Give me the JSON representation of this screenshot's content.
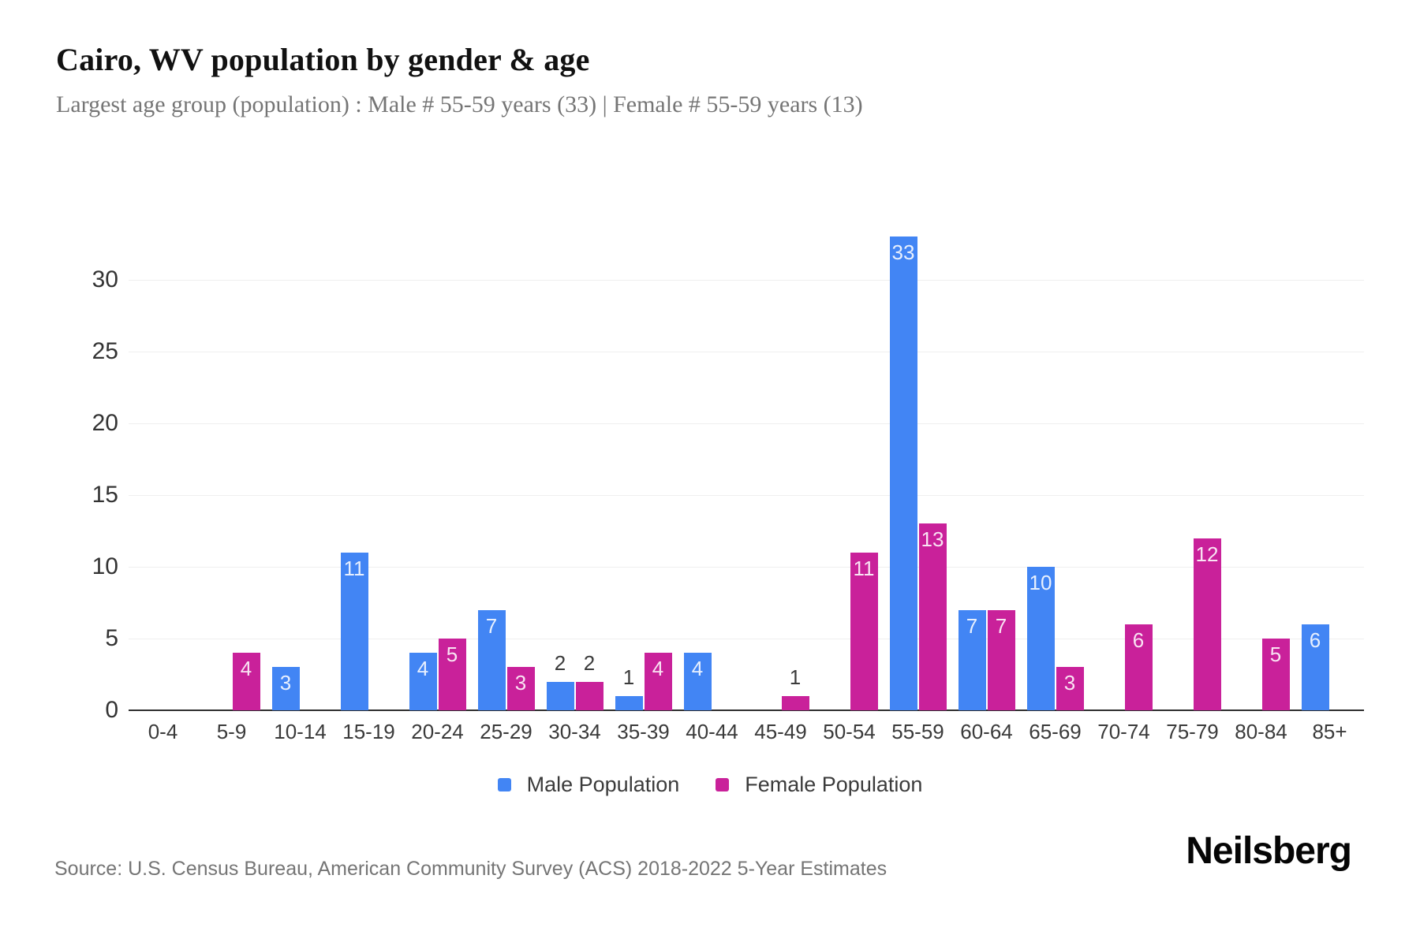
{
  "header": {
    "title": "Cairo, WV population by gender & age",
    "subtitle": "Largest age group (population) : Male # 55-59 years (33) | Female # 55-59 years (13)"
  },
  "chart_data": {
    "type": "bar",
    "title": "Cairo, WV population by gender & age",
    "categories": [
      "0-4",
      "5-9",
      "10-14",
      "15-19",
      "20-24",
      "25-29",
      "30-34",
      "35-39",
      "40-44",
      "45-49",
      "50-54",
      "55-59",
      "60-64",
      "65-69",
      "70-74",
      "75-79",
      "80-84",
      "85+"
    ],
    "series": [
      {
        "name": "Male Population",
        "color": "#4285F4",
        "values": [
          0,
          0,
          3,
          11,
          4,
          7,
          2,
          1,
          4,
          0,
          0,
          33,
          7,
          10,
          0,
          0,
          0,
          6
        ]
      },
      {
        "name": "Female Population",
        "color": "#C9219A",
        "values": [
          0,
          4,
          0,
          0,
          5,
          3,
          2,
          4,
          0,
          1,
          11,
          13,
          7,
          3,
          6,
          12,
          5,
          0
        ]
      }
    ],
    "xlabel": "",
    "ylabel": "",
    "yticks": [
      0,
      5,
      10,
      15,
      20,
      25,
      30
    ],
    "ylim": [
      0,
      33
    ],
    "grid": true,
    "legend_position": "bottom",
    "value_labels": "inside-top; values of 2 or less shown above bar in dark text",
    "colors": {
      "grid": "#efefef",
      "axis": "#2f2f2f",
      "tick_text": "#333333",
      "label_in_bar": "#ffffff",
      "label_above_bar": "#3b3b3b"
    }
  },
  "footer": {
    "source": "Source: U.S. Census Bureau, American Community Survey (ACS) 2018-2022 5-Year Estimates",
    "brand": "Neilsberg"
  }
}
